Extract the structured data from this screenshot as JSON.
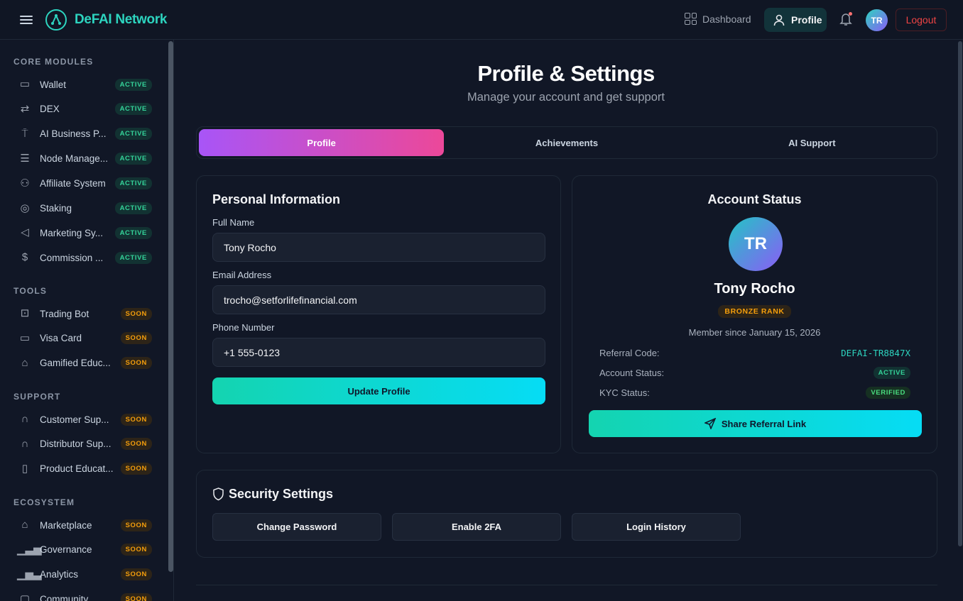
{
  "header": {
    "brand": "DeFAI Network",
    "dashboard": "Dashboard",
    "profile": "Profile",
    "avatar": "TR",
    "logout": "Logout"
  },
  "sidebar": {
    "sections": [
      {
        "title": "CORE MODULES",
        "items": [
          {
            "label": "Wallet",
            "badge": "ACTIVE",
            "icon": "wallet-icon",
            "glyph": "▭"
          },
          {
            "label": "DEX",
            "badge": "ACTIVE",
            "icon": "swap-icon",
            "glyph": "⇄"
          },
          {
            "label": "AI Business P...",
            "badge": "ACTIVE",
            "icon": "antenna-icon",
            "glyph": "⍑"
          },
          {
            "label": "Node Manage...",
            "badge": "ACTIVE",
            "icon": "server-icon",
            "glyph": "☰"
          },
          {
            "label": "Affiliate System",
            "badge": "ACTIVE",
            "icon": "users-icon",
            "glyph": "⚇"
          },
          {
            "label": "Staking",
            "badge": "ACTIVE",
            "icon": "coins-icon",
            "glyph": "◎"
          },
          {
            "label": "Marketing Sy...",
            "badge": "ACTIVE",
            "icon": "megaphone-icon",
            "glyph": "◁"
          },
          {
            "label": "Commission ...",
            "badge": "ACTIVE",
            "icon": "dollar-icon",
            "glyph": "$"
          }
        ]
      },
      {
        "title": "TOOLS",
        "items": [
          {
            "label": "Trading Bot",
            "badge": "SOON",
            "icon": "bot-icon",
            "glyph": "⊡"
          },
          {
            "label": "Visa Card",
            "badge": "SOON",
            "icon": "credit-card-icon",
            "glyph": "▭"
          },
          {
            "label": "Gamified Educ...",
            "badge": "SOON",
            "icon": "graduation-cap-icon",
            "glyph": "⌂"
          }
        ]
      },
      {
        "title": "SUPPORT",
        "items": [
          {
            "label": "Customer Sup...",
            "badge": "SOON",
            "icon": "headphones-icon",
            "glyph": "∩"
          },
          {
            "label": "Distributor Sup...",
            "badge": "SOON",
            "icon": "headphones-icon",
            "glyph": "∩"
          },
          {
            "label": "Product Educat...",
            "badge": "SOON",
            "icon": "book-icon",
            "glyph": "▯"
          }
        ]
      },
      {
        "title": "ECOSYSTEM",
        "items": [
          {
            "label": "Marketplace",
            "badge": "SOON",
            "icon": "store-icon",
            "glyph": "⌂"
          },
          {
            "label": "Governance",
            "badge": "SOON",
            "icon": "bar-chart-icon",
            "glyph": "▁▃▅"
          },
          {
            "label": "Analytics",
            "badge": "SOON",
            "icon": "bar-chart-icon",
            "glyph": "▁▅▃"
          },
          {
            "label": "Community",
            "badge": "SOON",
            "icon": "chat-icon",
            "glyph": "▢"
          }
        ]
      }
    ]
  },
  "page": {
    "title": "Profile & Settings",
    "subtitle": "Manage your account and get support"
  },
  "tabs": [
    "Profile",
    "Achievements",
    "AI Support"
  ],
  "personal": {
    "title": "Personal Information",
    "name_label": "Full Name",
    "name": "Tony Rocho",
    "email_label": "Email Address",
    "email": "trocho@setforlifefinancial.com",
    "phone_label": "Phone Number",
    "phone": "+1 555-0123",
    "update": "Update Profile"
  },
  "account": {
    "title": "Account Status",
    "initials": "TR",
    "name": "Tony Rocho",
    "rank": "BRONZE RANK",
    "member_since": "Member since January 15, 2026",
    "referral_label": "Referral Code:",
    "referral": "DEFAI-TR8847X",
    "status_label": "Account Status:",
    "status": "ACTIVE",
    "kyc_label": "KYC Status:",
    "kyc": "VERIFIED",
    "share": "Share Referral Link"
  },
  "security": {
    "title": "Security Settings",
    "buttons": [
      "Change Password",
      "Enable 2FA",
      "Login History"
    ]
  },
  "colors": {
    "accent": "#2dd4bf",
    "tab_gradient": [
      "#a855f7",
      "#ec4899"
    ],
    "button_gradient": [
      "#14d4b0",
      "#06dcf5"
    ],
    "active": "#34d399",
    "soon": "#f59e0b",
    "logout": "#ef4444"
  }
}
